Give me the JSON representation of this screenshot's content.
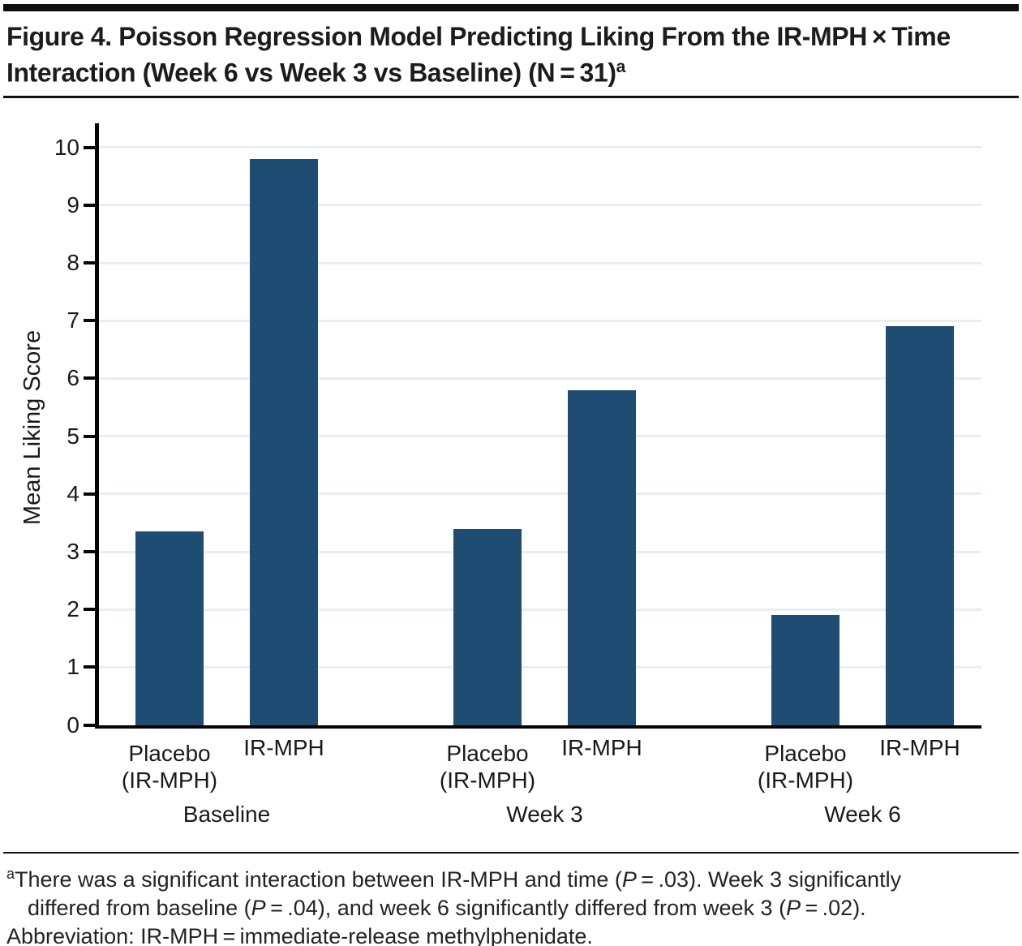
{
  "figure": {
    "title_lines": [
      "Figure 4. Poisson Regression Model Predicting Liking From the IR-MPH × Time",
      "Interaction (Week 6 vs Week 3 vs Baseline) (N = 31)"
    ],
    "title_superscript": "a"
  },
  "chart_data": {
    "type": "bar",
    "title": "",
    "xlabel": "",
    "ylabel": "Mean Liking Score",
    "ylim": [
      0,
      10
    ],
    "yticks": [
      0,
      1,
      2,
      3,
      4,
      5,
      6,
      7,
      8,
      9,
      10
    ],
    "grid": true,
    "legend": "none",
    "bar_color": "#1e4c73",
    "gridline_color": "#e8eef1",
    "categories": [
      "Baseline",
      "Week 3",
      "Week 6"
    ],
    "series": [
      {
        "name": "Placebo (IR-MPH)",
        "label_lines": [
          "Placebo",
          "(IR-MPH)"
        ],
        "values": [
          3.35,
          3.4,
          1.9
        ]
      },
      {
        "name": "IR-MPH",
        "label_lines": [
          "IR-MPH"
        ],
        "values": [
          9.8,
          5.8,
          6.9
        ]
      }
    ]
  },
  "footnote": {
    "lines": [
      {
        "indent": false,
        "segments": [
          {
            "sup": true,
            "text": "a"
          },
          {
            "text": "There was a significant interaction between IR-MPH and time ("
          },
          {
            "italic": true,
            "text": "P"
          },
          {
            "text": " = .03). Week 3 significantly"
          }
        ]
      },
      {
        "indent": true,
        "segments": [
          {
            "text": "differed from baseline ("
          },
          {
            "italic": true,
            "text": "P"
          },
          {
            "text": " = .04), and week 6 significantly differed from week 3 ("
          },
          {
            "italic": true,
            "text": "P"
          },
          {
            "text": " = .02)."
          }
        ]
      },
      {
        "indent": false,
        "segments": [
          {
            "text": "Abbreviation: IR-MPH = immediate-release methylphenidate."
          }
        ]
      }
    ]
  }
}
